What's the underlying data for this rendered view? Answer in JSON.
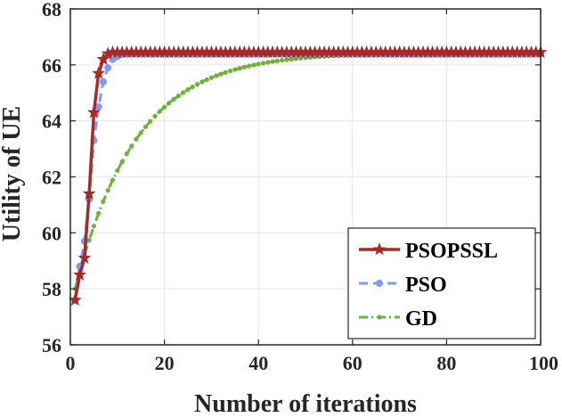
{
  "chart_data": {
    "type": "line",
    "title": "",
    "xlabel": "Number of iterations",
    "ylabel": "Utility of UE",
    "xlim": [
      0,
      100
    ],
    "ylim": [
      56,
      68
    ],
    "xticks": [
      0,
      20,
      40,
      60,
      80,
      100
    ],
    "yticks": [
      56,
      58,
      60,
      62,
      64,
      66,
      68
    ],
    "xtick_labels": [
      "0",
      "20",
      "40",
      "60",
      "80",
      "100"
    ],
    "ytick_labels": [
      "56",
      "58",
      "60",
      "62",
      "64",
      "66",
      "68"
    ],
    "grid": true,
    "legend_position": "bottom-right",
    "series": [
      {
        "name": "PSOPSSL",
        "color": "#a52a2a",
        "marker": "star",
        "line_style": "solid",
        "x_start": 1,
        "x_end": 100,
        "values": [
          57.6,
          58.5,
          59.1,
          61.4,
          64.3,
          65.7,
          66.2,
          66.4,
          66.45,
          66.45
        ],
        "final_value": 66.45
      },
      {
        "name": "PSO",
        "color": "#7e9cf7",
        "marker": "circle",
        "line_style": "dashed",
        "x_start": 1,
        "x_end": 100,
        "values": [
          57.6,
          58.8,
          59.7,
          61.2,
          63.3,
          64.5,
          65.4,
          65.9,
          66.2,
          66.3,
          66.38,
          66.4
        ],
        "final_value": 66.4
      },
      {
        "name": "GD",
        "color": "#6bb33b",
        "marker": "dot",
        "line_style": "dashdot",
        "model": "exponential",
        "start_value": 58.0,
        "asymptote": 66.45,
        "rate": 0.077,
        "x_start": 1,
        "x_end": 100
      }
    ]
  }
}
